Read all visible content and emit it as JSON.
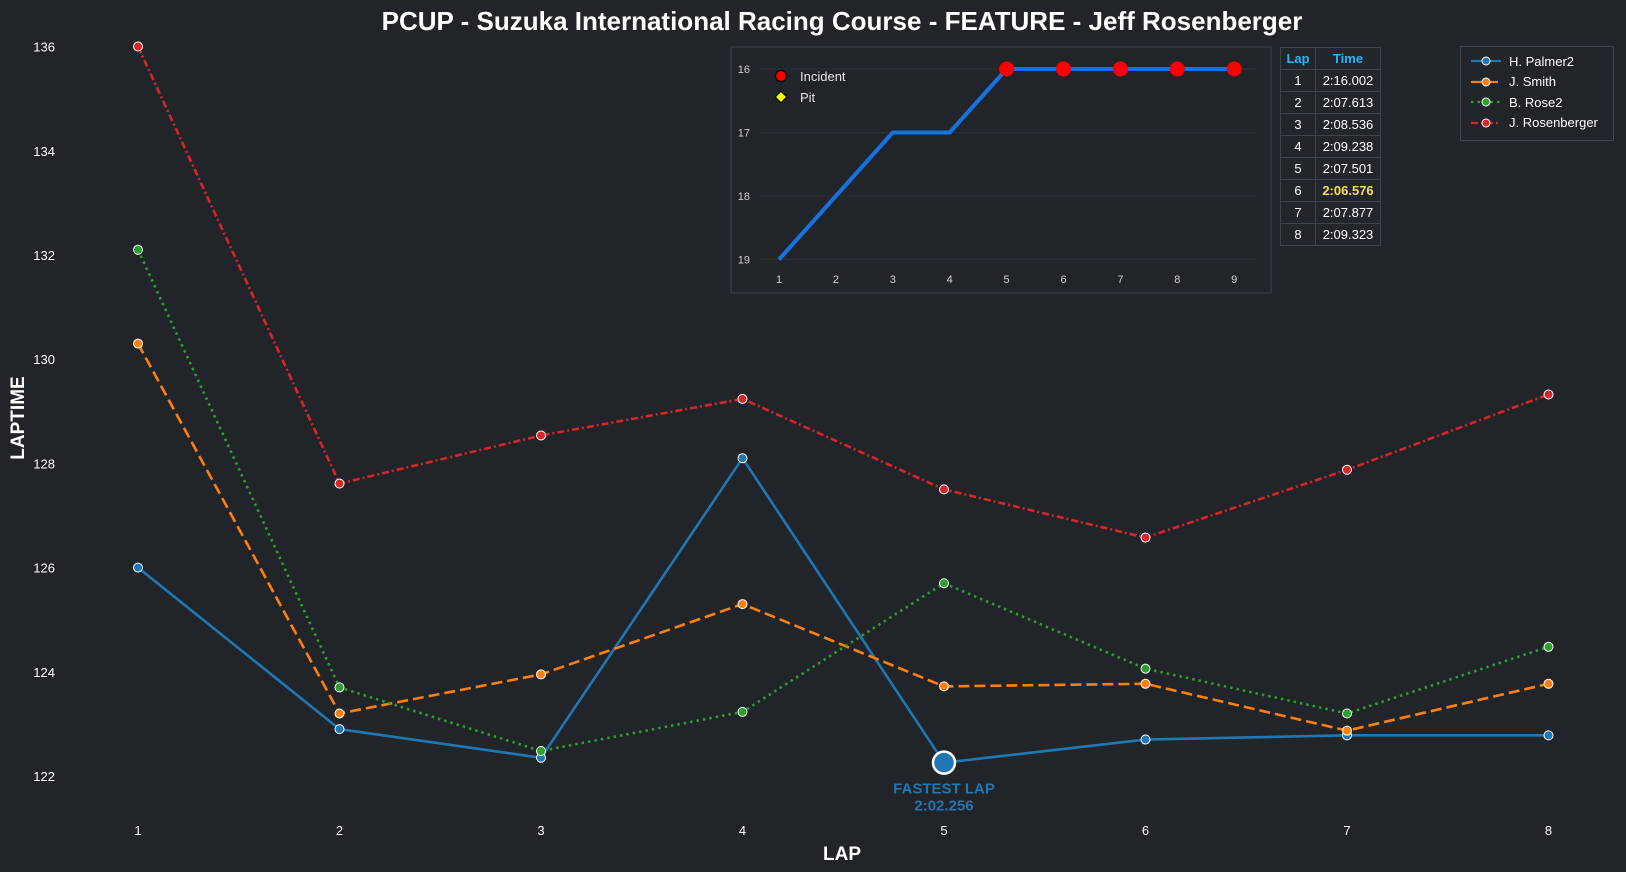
{
  "chart_data": [
    {
      "type": "line",
      "title": "PCUP - Suzuka International Racing Course - FEATURE - Jeff Rosenberger",
      "xlabel": "LAP",
      "ylabel": "LAPTIME",
      "x": [
        1,
        2,
        3,
        4,
        5,
        6,
        7,
        8
      ],
      "ylim": [
        121.2,
        136.2
      ],
      "yticks": [
        122,
        124,
        126,
        128,
        130,
        132,
        134,
        136
      ],
      "grid": false,
      "legend_position": "top-right",
      "series": [
        {
          "name": "H. Palmer2",
          "color": "#1f77b4",
          "style": "solid",
          "values": [
            126.0,
            122.9,
            122.35,
            128.1,
            122.256,
            122.7,
            122.78,
            122.78
          ]
        },
        {
          "name": "J. Smith",
          "color": "#ff7f0e",
          "style": "dashed",
          "values": [
            130.3,
            123.2,
            123.95,
            125.3,
            123.72,
            123.77,
            122.87,
            123.77
          ]
        },
        {
          "name": "B. Rose2",
          "color": "#2ca02c",
          "style": "dotted",
          "values": [
            132.1,
            123.7,
            122.48,
            123.23,
            125.7,
            124.06,
            123.2,
            124.48
          ]
        },
        {
          "name": "J. Rosenberger",
          "color": "#d62728",
          "style": "dash-dot",
          "values": [
            136.002,
            127.613,
            128.536,
            129.238,
            127.501,
            126.576,
            127.877,
            129.323
          ]
        }
      ],
      "annotation": {
        "series": "H. Palmer2",
        "x": 5,
        "label": "FASTEST LAP",
        "value": "2:02.256"
      }
    },
    {
      "type": "line",
      "title": "",
      "x": [
        1,
        2,
        3,
        4,
        5,
        6,
        7,
        8,
        9
      ],
      "xticks": [
        "1",
        "2",
        "3",
        "4",
        "5",
        "6",
        "7",
        "8",
        "9"
      ],
      "yticks": [
        "16",
        "17",
        "18",
        "19"
      ],
      "ylim": [
        19,
        16
      ],
      "inverted_y": true,
      "series": [
        {
          "name": "position",
          "color": "#1672e0",
          "values": [
            19,
            18,
            17,
            17,
            16,
            16,
            16,
            16,
            16
          ]
        }
      ],
      "incidents_x": [
        5,
        6,
        7,
        8,
        9
      ],
      "pits_x": [],
      "legend": [
        {
          "label": "Incident",
          "color": "#ff0000",
          "marker": "circle"
        },
        {
          "label": "Pit",
          "color": "#ffff00",
          "marker": "diamond"
        }
      ]
    }
  ],
  "lap_table": {
    "headers": [
      "Lap",
      "Time"
    ],
    "rows": [
      {
        "lap": "1",
        "time": "2:16.002",
        "best": false
      },
      {
        "lap": "2",
        "time": "2:07.613",
        "best": false
      },
      {
        "lap": "3",
        "time": "2:08.536",
        "best": false
      },
      {
        "lap": "4",
        "time": "2:09.238",
        "best": false
      },
      {
        "lap": "5",
        "time": "2:07.501",
        "best": false
      },
      {
        "lap": "6",
        "time": "2:06.576",
        "best": true
      },
      {
        "lap": "7",
        "time": "2:07.877",
        "best": false
      },
      {
        "lap": "8",
        "time": "2:09.323",
        "best": false
      }
    ]
  }
}
